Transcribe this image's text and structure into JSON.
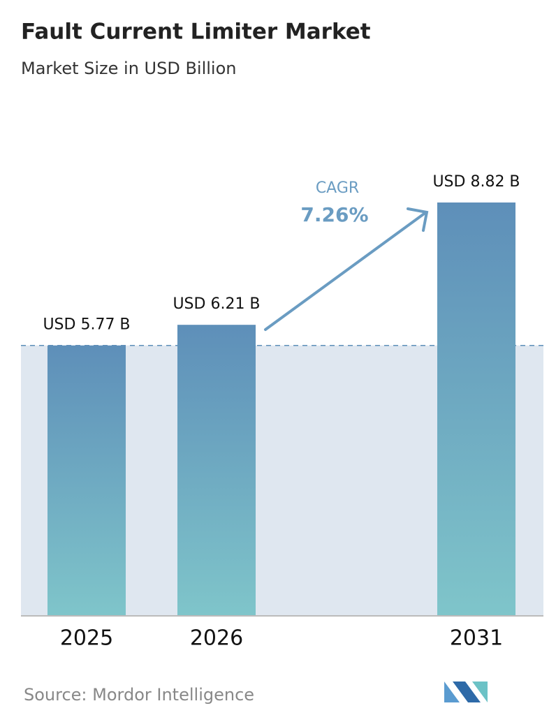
{
  "chart_data": {
    "type": "bar",
    "title": "Fault Current Limiter Market",
    "subtitle": "Market Size in USD Billion",
    "categories": [
      "2025",
      "2026",
      "2031"
    ],
    "values": [
      5.77,
      6.21,
      8.82
    ],
    "value_labels": [
      "USD 5.77 B",
      "USD 6.21 B",
      "USD 8.82 B"
    ],
    "cagr_label": "CAGR",
    "cagr_value": "7.26%",
    "source": "Source: Mordor Intelligence"
  }
}
